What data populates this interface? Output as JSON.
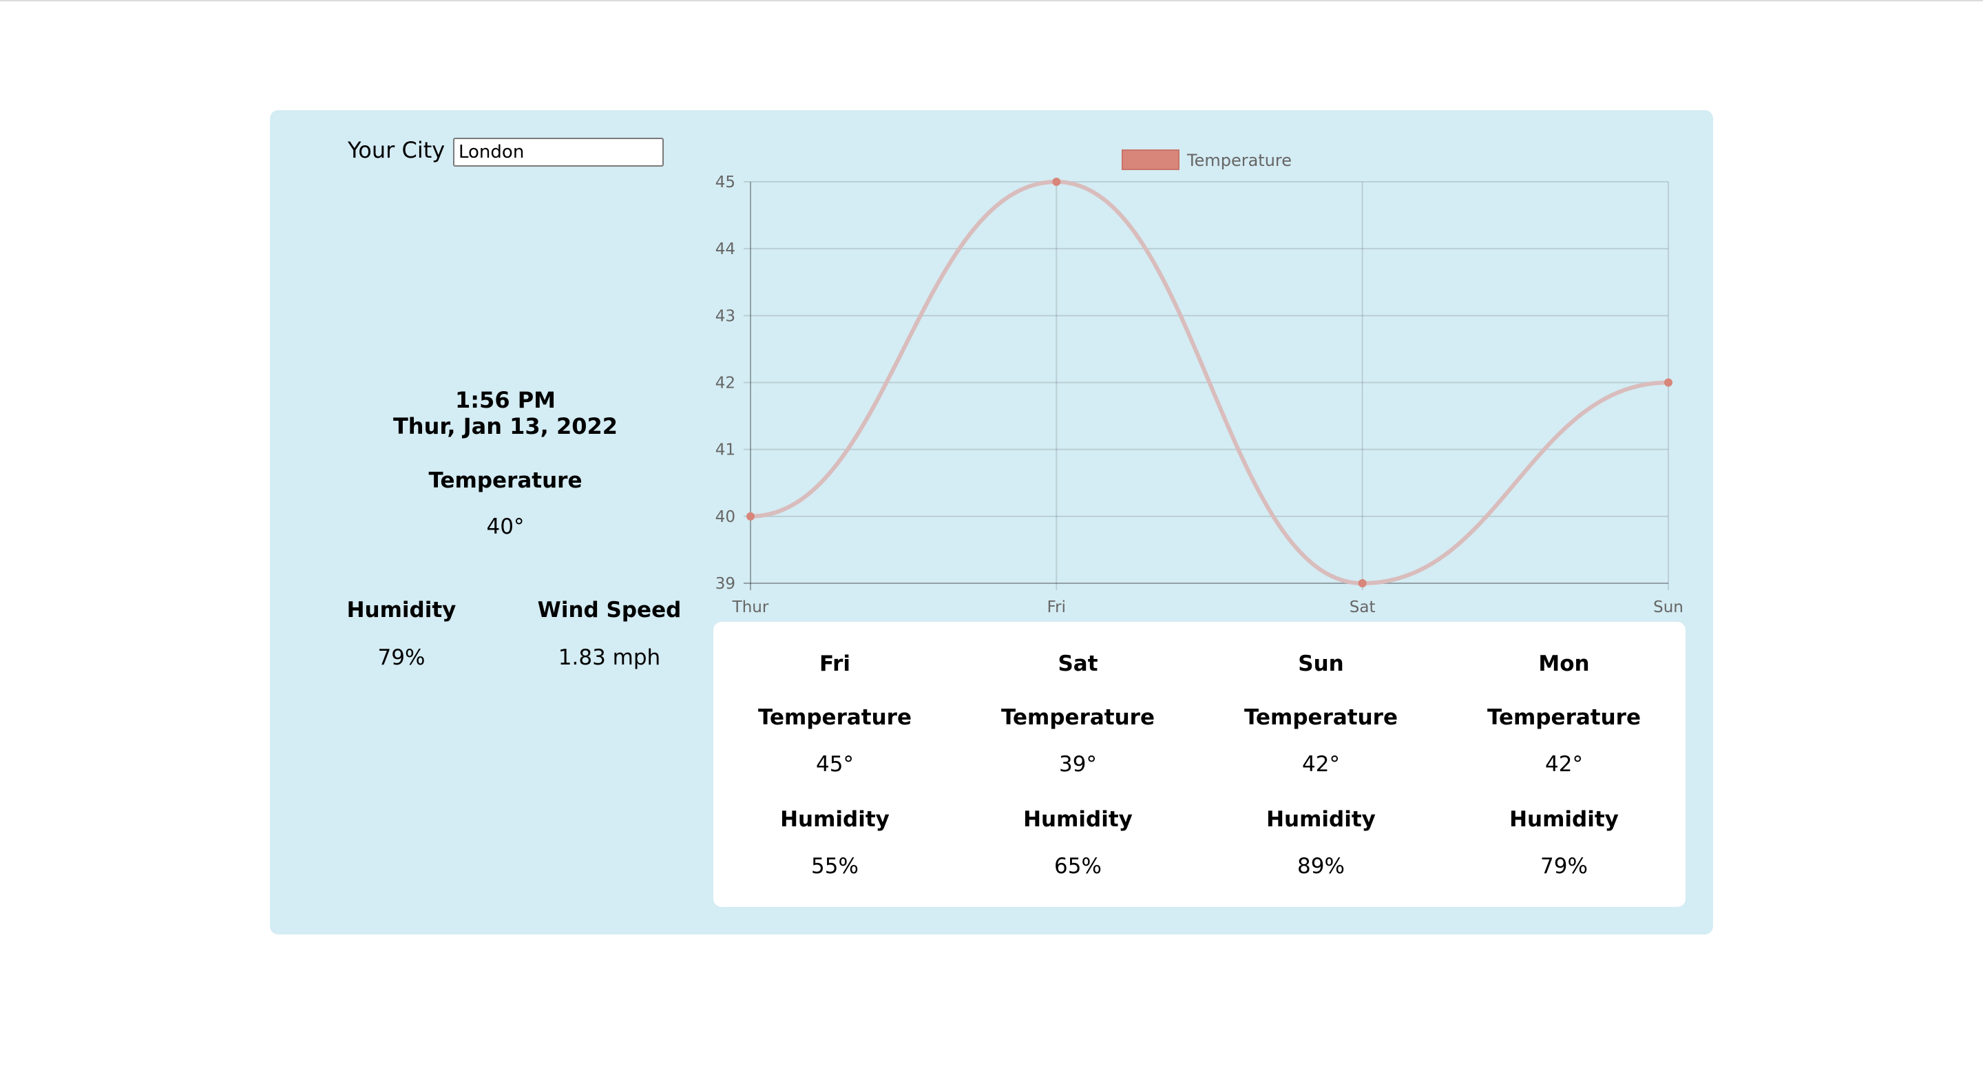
{
  "search": {
    "label": "Your City",
    "value": "London"
  },
  "current": {
    "time": "1:56 PM",
    "date": "Thur, Jan 13, 2022",
    "temperature_label": "Temperature",
    "temperature_value": "40°",
    "humidity_label": "Humidity",
    "humidity_value": "79%",
    "wind_label": "Wind Speed",
    "wind_value": "1.83 mph"
  },
  "chart_data": {
    "type": "line",
    "categories": [
      "Thur",
      "Fri",
      "Sat",
      "Sun"
    ],
    "series": [
      {
        "name": "Temperature",
        "values": [
          40,
          45,
          39,
          42
        ],
        "line_color": "#d9bcbc",
        "point_color": "#d8857a"
      }
    ],
    "ylim": [
      39,
      45
    ],
    "yticks": [
      39,
      40,
      41,
      42,
      43,
      44,
      45
    ],
    "legend_position": "top-center",
    "legend_color": "#d8857a",
    "grid": true,
    "smooth": true
  },
  "forecast": [
    {
      "day": "Fri",
      "temperature_label": "Temperature",
      "temperature_value": "45°",
      "humidity_label": "Humidity",
      "humidity_value": "55%"
    },
    {
      "day": "Sat",
      "temperature_label": "Temperature",
      "temperature_value": "39°",
      "humidity_label": "Humidity",
      "humidity_value": "65%"
    },
    {
      "day": "Sun",
      "temperature_label": "Temperature",
      "temperature_value": "42°",
      "humidity_label": "Humidity",
      "humidity_value": "89%"
    },
    {
      "day": "Mon",
      "temperature_label": "Temperature",
      "temperature_value": "42°",
      "humidity_label": "Humidity",
      "humidity_value": "79%"
    }
  ],
  "colors": {
    "card_background": "#d4ecf3",
    "panel_background": "#ffffff"
  }
}
